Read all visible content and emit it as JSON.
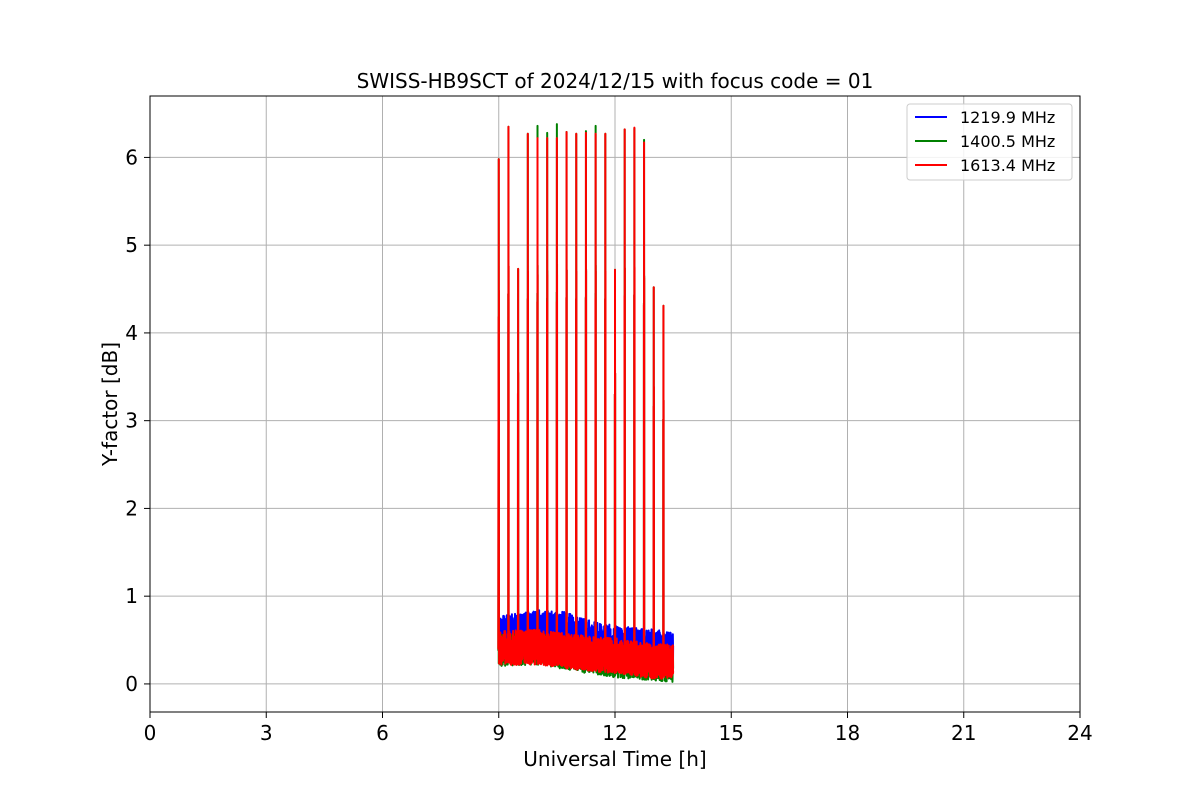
{
  "chart_data": {
    "type": "line",
    "title": "SWISS-HB9SCT of 2024/12/15 with focus code = 01",
    "xlabel": "Universal Time [h]",
    "ylabel": "Y-factor [dB]",
    "xlim": [
      0,
      24
    ],
    "ylim": [
      -0.32,
      6.7
    ],
    "x_ticks": [
      0,
      3,
      6,
      9,
      12,
      15,
      18,
      21,
      24
    ],
    "y_ticks": [
      0,
      1,
      2,
      3,
      4,
      5,
      6
    ],
    "grid": true,
    "legend_position": "top-right",
    "series": [
      {
        "name": "1219.9 MHz",
        "color": "#0000ff",
        "x_range": [
          9.0,
          13.5
        ],
        "baseline": [
          [
            9.0,
            0.55
          ],
          [
            10.0,
            0.62
          ],
          [
            10.7,
            0.6
          ],
          [
            11.5,
            0.48
          ],
          [
            12.5,
            0.42
          ],
          [
            13.5,
            0.38
          ]
        ],
        "noise_amplitude": 0.22,
        "peaks": []
      },
      {
        "name": "1400.5 MHz",
        "color": "#008000",
        "x_range": [
          9.0,
          13.5
        ],
        "baseline": [
          [
            9.0,
            0.38
          ],
          [
            10.0,
            0.4
          ],
          [
            11.0,
            0.32
          ],
          [
            12.0,
            0.25
          ],
          [
            13.0,
            0.22
          ],
          [
            13.5,
            0.2
          ]
        ],
        "noise_amplitude": 0.18,
        "peaks": [
          [
            9.0,
            5.98
          ],
          [
            9.25,
            6.35
          ],
          [
            9.5,
            4.73
          ],
          [
            9.75,
            6.27
          ],
          [
            10.0,
            6.36
          ],
          [
            10.25,
            6.28
          ],
          [
            10.5,
            6.38
          ],
          [
            10.75,
            6.29
          ],
          [
            11.0,
            6.27
          ],
          [
            11.25,
            6.3
          ],
          [
            11.5,
            6.36
          ],
          [
            11.75,
            6.27
          ],
          [
            12.0,
            4.72
          ],
          [
            12.25,
            6.32
          ],
          [
            12.5,
            6.33
          ],
          [
            12.75,
            6.2
          ],
          [
            13.0,
            4.52
          ],
          [
            13.25,
            4.31
          ]
        ]
      },
      {
        "name": "1613.4 MHz",
        "color": "#ff0000",
        "x_range": [
          9.0,
          13.5
        ],
        "baseline": [
          [
            9.0,
            0.4
          ],
          [
            10.0,
            0.42
          ],
          [
            11.0,
            0.36
          ],
          [
            12.0,
            0.32
          ],
          [
            13.0,
            0.26
          ],
          [
            13.5,
            0.25
          ]
        ],
        "noise_amplitude": 0.2,
        "peaks": [
          [
            9.0,
            5.98
          ],
          [
            9.25,
            6.35
          ],
          [
            9.5,
            4.73
          ],
          [
            9.75,
            6.27
          ],
          [
            10.0,
            6.22
          ],
          [
            10.25,
            6.22
          ],
          [
            10.5,
            6.22
          ],
          [
            10.75,
            6.29
          ],
          [
            11.0,
            6.27
          ],
          [
            11.25,
            6.28
          ],
          [
            11.5,
            6.27
          ],
          [
            11.75,
            6.27
          ],
          [
            12.0,
            4.72
          ],
          [
            12.25,
            6.32
          ],
          [
            12.5,
            6.34
          ],
          [
            12.75,
            6.17
          ],
          [
            13.0,
            4.52
          ],
          [
            13.25,
            4.31
          ]
        ]
      }
    ]
  }
}
